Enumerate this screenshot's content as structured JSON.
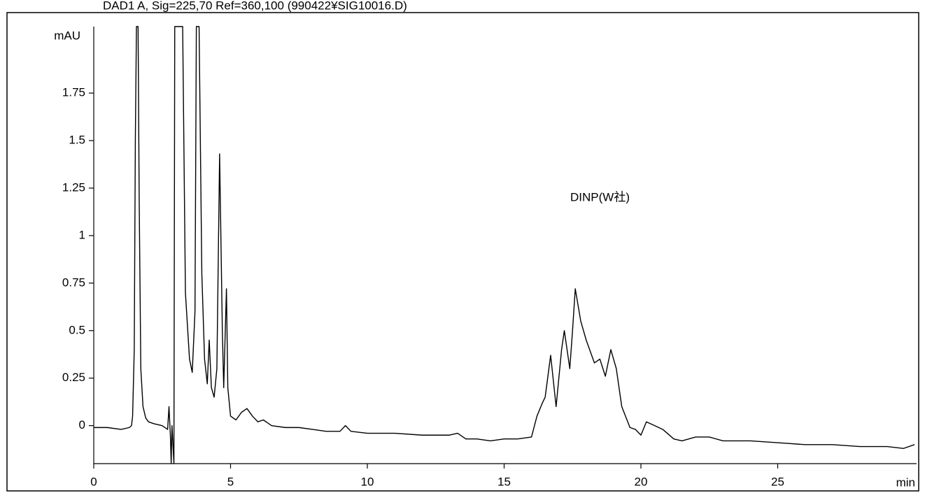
{
  "chart_data": {
    "type": "line",
    "title": "DAD1 A, Sig=225,70 Ref=360,100 (990422¥SIG10016.D)",
    "y_label": "mAU",
    "x_label": "min",
    "annotation": "DINP(W社)",
    "color": "#000000",
    "x": [
      0,
      0.5,
      1.0,
      1.3,
      1.38,
      1.42,
      1.48,
      1.52,
      1.56,
      1.62,
      1.66,
      1.72,
      1.8,
      1.9,
      2.0,
      2.2,
      2.5,
      2.7,
      2.75,
      2.8,
      2.83,
      2.86,
      2.93,
      2.96,
      3.0,
      3.1,
      3.25,
      3.35,
      3.5,
      3.6,
      3.7,
      3.75,
      3.85,
      3.95,
      4.05,
      4.15,
      4.22,
      4.3,
      4.4,
      4.5,
      4.6,
      4.7,
      4.75,
      4.85,
      4.9,
      5.0,
      5.2,
      5.4,
      5.6,
      5.8,
      6.0,
      6.2,
      6.5,
      7.0,
      7.5,
      8.0,
      8.5,
      9.0,
      9.2,
      9.4,
      10,
      11,
      12,
      13,
      13.3,
      13.6,
      14,
      14.5,
      15,
      15.5,
      16.0,
      16.2,
      16.4,
      16.5,
      16.7,
      16.9,
      17.1,
      17.2,
      17.4,
      17.5,
      17.6,
      17.8,
      18.0,
      18.3,
      18.5,
      18.7,
      18.9,
      19.1,
      19.3,
      19.6,
      19.8,
      20.0,
      20.2,
      20.5,
      20.8,
      21.2,
      21.5,
      22,
      22.5,
      23,
      24,
      25,
      26,
      27,
      28,
      29,
      29.6,
      30
    ],
    "values": [
      -0.01,
      -0.01,
      -0.02,
      -0.01,
      0.0,
      0.05,
      0.4,
      1.5,
      2.1,
      2.1,
      1.2,
      0.3,
      0.1,
      0.04,
      0.02,
      0.01,
      0.0,
      -0.02,
      0.1,
      -0.05,
      -0.2,
      0.0,
      -0.2,
      2.1,
      2.1,
      2.1,
      2.1,
      0.7,
      0.35,
      0.28,
      0.6,
      2.1,
      2.1,
      0.8,
      0.35,
      0.22,
      0.45,
      0.2,
      0.15,
      0.3,
      1.43,
      0.5,
      0.2,
      0.72,
      0.2,
      0.05,
      0.03,
      0.07,
      0.09,
      0.05,
      0.02,
      0.03,
      0.0,
      -0.01,
      -0.01,
      -0.02,
      -0.03,
      -0.03,
      0.0,
      -0.03,
      -0.04,
      -0.04,
      -0.05,
      -0.05,
      -0.04,
      -0.07,
      -0.07,
      -0.08,
      -0.07,
      -0.07,
      -0.06,
      0.05,
      0.12,
      0.15,
      0.37,
      0.1,
      0.4,
      0.5,
      0.3,
      0.5,
      0.72,
      0.55,
      0.45,
      0.33,
      0.35,
      0.26,
      0.4,
      0.3,
      0.1,
      -0.01,
      -0.02,
      -0.05,
      0.02,
      0.0,
      -0.02,
      -0.07,
      -0.08,
      -0.06,
      -0.06,
      -0.08,
      -0.08,
      -0.09,
      -0.1,
      -0.1,
      -0.11,
      -0.11,
      -0.12,
      -0.1
    ],
    "xlim": [
      0,
      30
    ],
    "ylim": [
      -0.2,
      2.1
    ],
    "xticks": [
      0,
      5,
      10,
      15,
      20,
      25
    ],
    "yticks": [
      0,
      0.25,
      0.5,
      0.75,
      1,
      1.25,
      1.5,
      1.75
    ]
  }
}
